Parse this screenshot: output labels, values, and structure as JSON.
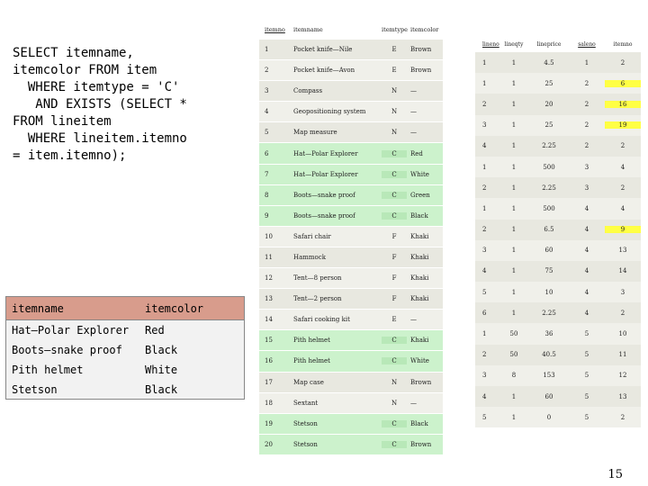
{
  "sql_lines": [
    "SELECT itemname,",
    "itemcolor FROM item",
    "  WHERE itemtype = 'C'",
    "   AND EXISTS (SELECT *",
    "FROM lineitem",
    "  WHERE lineitem.itemno",
    "= item.itemno);"
  ],
  "result": {
    "headers": [
      "itemname",
      "itemcolor"
    ],
    "rows": [
      [
        "Hat—Polar Explorer",
        "Red"
      ],
      [
        "Boots—snake proof",
        "Black"
      ],
      [
        "Pith helmet",
        "White"
      ],
      [
        "Stetson",
        "Black"
      ]
    ]
  },
  "item_table": {
    "headers": [
      "itemno",
      "itemname",
      "itemtype",
      "itemcolor"
    ],
    "rows": [
      [
        "1",
        "Pocket knife—Nile",
        "E",
        "Brown"
      ],
      [
        "2",
        "Pocket knife—Avon",
        "E",
        "Brown"
      ],
      [
        "3",
        "Compass",
        "N",
        "—"
      ],
      [
        "4",
        "Geopositioning system",
        "N",
        "—"
      ],
      [
        "5",
        "Map measure",
        "N",
        "—"
      ],
      [
        "6",
        "Hat—Polar Explorer",
        "C",
        "Red"
      ],
      [
        "7",
        "Hat—Polar Explorer",
        "C",
        "White"
      ],
      [
        "8",
        "Boots—snake proof",
        "C",
        "Green"
      ],
      [
        "9",
        "Boots—snake proof",
        "C",
        "Black"
      ],
      [
        "10",
        "Safari chair",
        "F",
        "Khaki"
      ],
      [
        "11",
        "Hammock",
        "F",
        "Khaki"
      ],
      [
        "12",
        "Tent—8 person",
        "F",
        "Khaki"
      ],
      [
        "13",
        "Tent—2 person",
        "F",
        "Khaki"
      ],
      [
        "14",
        "Safari cooking kit",
        "E",
        "—"
      ],
      [
        "15",
        "Pith helmet",
        "C",
        "Khaki"
      ],
      [
        "16",
        "Pith helmet",
        "C",
        "White"
      ],
      [
        "17",
        "Map case",
        "N",
        "Brown"
      ],
      [
        "18",
        "Sextant",
        "N",
        "—"
      ],
      [
        "19",
        "Stetson",
        "C",
        "Black"
      ],
      [
        "20",
        "Stetson",
        "C",
        "Brown"
      ]
    ]
  },
  "lineitem_table": {
    "headers": [
      "lineno",
      "lineqty",
      "lineprice",
      "saleno",
      "itemno"
    ],
    "rows": [
      [
        "1",
        "1",
        "4.5",
        "1",
        "2"
      ],
      [
        "1",
        "1",
        "25",
        "2",
        "6"
      ],
      [
        "2",
        "1",
        "20",
        "2",
        "16"
      ],
      [
        "3",
        "1",
        "25",
        "2",
        "19"
      ],
      [
        "4",
        "1",
        "2.25",
        "2",
        "2"
      ],
      [
        "1",
        "1",
        "500",
        "3",
        "4"
      ],
      [
        "2",
        "1",
        "2.25",
        "3",
        "2"
      ],
      [
        "1",
        "1",
        "500",
        "4",
        "4"
      ],
      [
        "2",
        "1",
        "6.5",
        "4",
        "9"
      ],
      [
        "3",
        "1",
        "60",
        "4",
        "13"
      ],
      [
        "4",
        "1",
        "75",
        "4",
        "14"
      ],
      [
        "5",
        "1",
        "10",
        "4",
        "3"
      ],
      [
        "6",
        "1",
        "2.25",
        "4",
        "2"
      ],
      [
        "1",
        "50",
        "36",
        "5",
        "10"
      ],
      [
        "2",
        "50",
        "40.5",
        "5",
        "11"
      ],
      [
        "3",
        "8",
        "153",
        "5",
        "12"
      ],
      [
        "4",
        "1",
        "60",
        "5",
        "13"
      ],
      [
        "5",
        "1",
        "0",
        "5",
        "2"
      ]
    ]
  },
  "page_number": "15"
}
